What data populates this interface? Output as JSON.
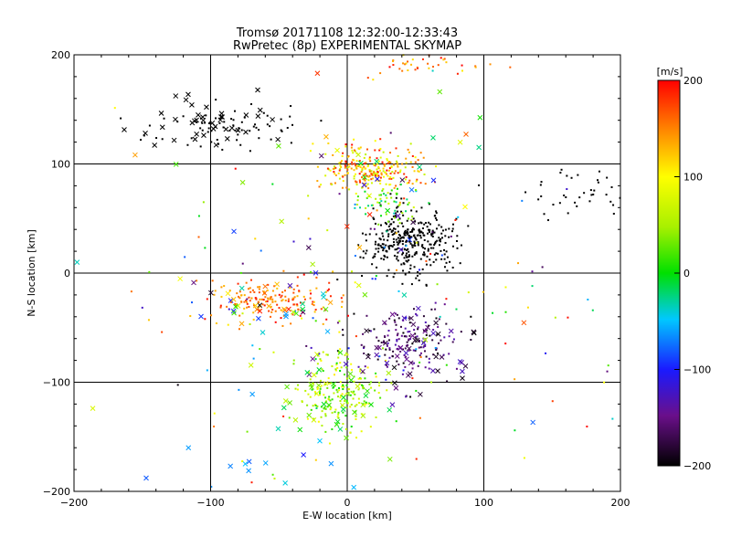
{
  "chart_data": {
    "type": "scatter",
    "title": "Tromsø 20171108 12:32:00-12:33:43",
    "subtitle": "RwPretec (8p) EXPERIMENTAL SKYMAP",
    "xlabel": "E-W location [km]",
    "ylabel": "N-S location [km]",
    "xlim": [
      -200,
      200
    ],
    "ylim": [
      -200,
      200
    ],
    "xticks": [
      -200,
      -100,
      0,
      100,
      200
    ],
    "yticks": [
      -200,
      -100,
      0,
      100,
      200
    ],
    "grid": true,
    "colorbar": {
      "label": "[m/s]",
      "range": [
        -200,
        200
      ],
      "ticks": [
        200,
        100,
        0,
        -100,
        -200
      ],
      "colormap": "black-purple-blue-cyan-green-yellow-red"
    },
    "markers": {
      "dot": "small point",
      "cross": "x"
    },
    "clusters": [
      {
        "cx": 45,
        "cy": 30,
        "sx": 17,
        "sy": 16,
        "n": 340,
        "vmin": -200,
        "vmax": -200,
        "marker": "dot"
      },
      {
        "cx": 18,
        "cy": 95,
        "sx": 20,
        "sy": 11,
        "n": 260,
        "vmin": 60,
        "vmax": 200,
        "marker": "dot"
      },
      {
        "cx": 28,
        "cy": 62,
        "sx": 12,
        "sy": 10,
        "n": 60,
        "vmin": -40,
        "vmax": 80,
        "marker": "dot"
      },
      {
        "cx": -55,
        "cy": -25,
        "sx": 25,
        "sy": 9,
        "n": 170,
        "vmin": 120,
        "vmax": 200,
        "marker": "dot"
      },
      {
        "cx": -5,
        "cy": -108,
        "sx": 15,
        "sy": 17,
        "n": 200,
        "vmin": 0,
        "vmax": 110,
        "marker": "dot"
      },
      {
        "cx": 45,
        "cy": -60,
        "sx": 17,
        "sy": 16,
        "n": 150,
        "vmin": -200,
        "vmax": -130,
        "marker": "dot"
      },
      {
        "cx": -85,
        "cy": 133,
        "sx": 32,
        "sy": 10,
        "n": 70,
        "vmin": -200,
        "vmax": -200,
        "marker": "dot"
      },
      {
        "cx": 165,
        "cy": 72,
        "sx": 20,
        "sy": 11,
        "n": 40,
        "vmin": -200,
        "vmax": -200,
        "marker": "dot"
      },
      {
        "cx": 60,
        "cy": 190,
        "sx": 25,
        "sy": 7,
        "n": 40,
        "vmin": 100,
        "vmax": 200,
        "marker": "dot"
      },
      {
        "cx": 0,
        "cy": -30,
        "sx": 90,
        "sy": 75,
        "n": 160,
        "vmin": -200,
        "vmax": 200,
        "marker": "dot"
      },
      {
        "cx": -100,
        "cy": 137,
        "sx": 30,
        "sy": 10,
        "n": 40,
        "vmin": -200,
        "vmax": -200,
        "marker": "cross"
      },
      {
        "cx": 50,
        "cy": -65,
        "sx": 20,
        "sy": 20,
        "n": 50,
        "vmin": -200,
        "vmax": -120,
        "marker": "cross"
      },
      {
        "cx": -50,
        "cy": -30,
        "sx": 35,
        "sy": 12,
        "n": 40,
        "vmin": -200,
        "vmax": 200,
        "marker": "cross"
      },
      {
        "cx": -10,
        "cy": -110,
        "sx": 25,
        "sy": 20,
        "n": 40,
        "vmin": -20,
        "vmax": 90,
        "marker": "cross"
      },
      {
        "cx": 25,
        "cy": 90,
        "sx": 40,
        "sy": 30,
        "n": 25,
        "vmin": -200,
        "vmax": 200,
        "marker": "cross"
      },
      {
        "cx": -60,
        "cy": -170,
        "sx": 40,
        "sy": 15,
        "n": 12,
        "vmin": -100,
        "vmax": 20,
        "marker": "cross"
      },
      {
        "cx": 0,
        "cy": 0,
        "sx": 110,
        "sy": 110,
        "n": 30,
        "vmin": -200,
        "vmax": 200,
        "marker": "cross"
      }
    ],
    "seed": 20171108
  }
}
